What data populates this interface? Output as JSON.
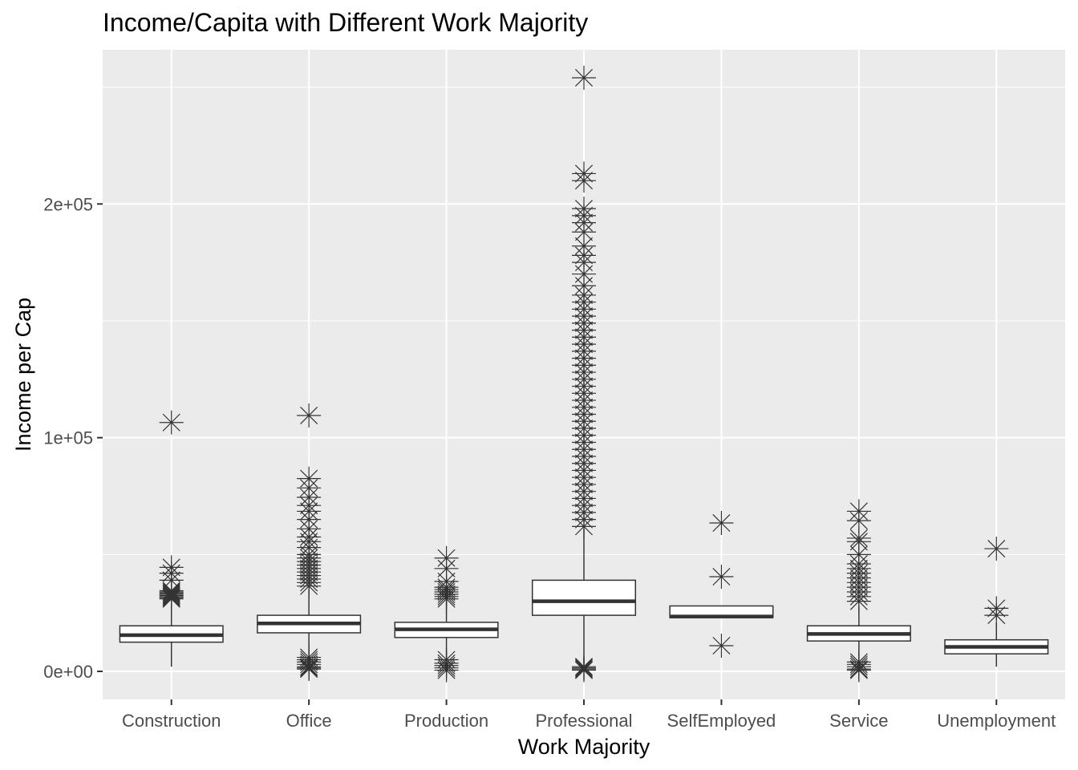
{
  "chart_data": {
    "type": "boxplot",
    "title": "Income/Capita with Different Work Majority",
    "xlabel": "Work Majority",
    "ylabel": "Income per Cap",
    "ylim": [
      -12000,
      266000
    ],
    "y_ticks": [
      0,
      100000,
      200000
    ],
    "y_tick_labels": [
      "0e+00",
      "1e+05",
      "2e+05"
    ],
    "grid": true,
    "panel_background": "#ebebeb",
    "box_fill": "#ffffff",
    "line_color": "#333333",
    "outlier_shape": "asterisk",
    "categories": [
      "Construction",
      "Office",
      "Production",
      "Professional",
      "SelfEmployed",
      "Service",
      "Unemployment"
    ],
    "boxes": [
      {
        "category": "Construction",
        "whisker_low": 2000,
        "q1": 12500,
        "median": 15500,
        "q3": 19500,
        "whisker_high": 30000,
        "outliers": [
          106500,
          44500,
          42000,
          39000,
          34500,
          34000,
          33500,
          33000,
          32500,
          32000,
          31500,
          31000
        ]
      },
      {
        "category": "Office",
        "whisker_low": 7000,
        "q1": 16500,
        "median": 20500,
        "q3": 24000,
        "whisker_high": 35000,
        "outliers": [
          109500,
          82500,
          78500,
          74500,
          71000,
          68500,
          65000,
          61000,
          57500,
          55500,
          53000,
          50000,
          48500,
          47000,
          45500,
          44000,
          42500,
          41000,
          39500,
          38000,
          36500,
          6000,
          5000,
          4000,
          3000,
          2000,
          1500,
          1000
        ]
      },
      {
        "category": "Production",
        "whisker_low": 6000,
        "q1": 14500,
        "median": 18000,
        "q3": 21000,
        "whisker_high": 30000,
        "outliers": [
          48500,
          44000,
          38500,
          36000,
          35000,
          34000,
          33000,
          32000,
          31000,
          5000,
          3500,
          2500,
          1500,
          500
        ]
      },
      {
        "category": "Professional",
        "whisker_low": 3000,
        "q1": 24000,
        "median": 30000,
        "q3": 39000,
        "whisker_high": 61000,
        "outliers": [
          254000,
          213000,
          210000,
          198000,
          195000,
          192000,
          188000,
          182000,
          178000,
          175000,
          170000,
          165000,
          161000,
          158000,
          155000,
          152000,
          149000,
          146000,
          143000,
          140000,
          137000,
          134000,
          131000,
          128000,
          125000,
          122000,
          119000,
          116000,
          113000,
          110000,
          107000,
          104000,
          101000,
          98000,
          95000,
          92000,
          89000,
          86000,
          83000,
          80000,
          77000,
          74000,
          71000,
          68000,
          65000,
          62000,
          2000,
          1500,
          1000,
          500
        ]
      },
      {
        "category": "SelfEmployed",
        "whisker_low": 23000,
        "q1": 23000,
        "median": 23500,
        "q3": 28000,
        "whisker_high": 28000,
        "outliers": [
          63500,
          40500,
          11000
        ]
      },
      {
        "category": "Service",
        "whisker_low": 5000,
        "q1": 13000,
        "median": 16000,
        "q3": 19500,
        "whisker_high": 28000,
        "outliers": [
          68500,
          64500,
          57000,
          55500,
          50000,
          46000,
          44000,
          42000,
          40000,
          38000,
          36000,
          34000,
          32000,
          30000,
          4000,
          3000,
          2000,
          1000,
          500
        ]
      },
      {
        "category": "Unemployment",
        "whisker_low": 2000,
        "q1": 7500,
        "median": 10500,
        "q3": 13500,
        "whisker_high": 21000,
        "outliers": [
          52500,
          27000,
          24000
        ]
      }
    ]
  }
}
